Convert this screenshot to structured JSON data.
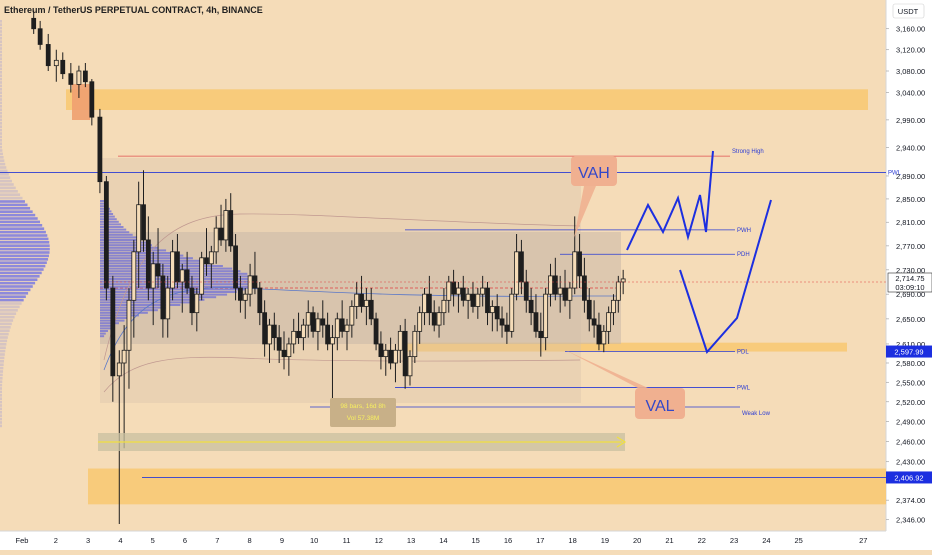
{
  "header": {
    "title": "Ethereum / TetherUS PERPETUAL CONTRACT, 4h, BINANCE",
    "currency": "USDT"
  },
  "colors": {
    "background": "#f5dcb8",
    "candle": "#1e1e1e",
    "zone": "#f8c870",
    "profile": "#6f6fd8",
    "level_line": "#2a3bd4",
    "drawing": "#1c2fe0",
    "callout": "#f0b090",
    "callout_text": "#3448c8"
  },
  "chart_data": {
    "type": "candlestick",
    "symbol": "Ethereum / TetherUS PERPETUAL CONTRACT",
    "timeframe": "4h",
    "exchange": "BINANCE",
    "y_scale": "log",
    "ylim": [
      2330,
      3200
    ],
    "y_ticks": [
      "3,160.00",
      "3,120.00",
      "3,080.00",
      "3,040.00",
      "2,990.00",
      "2,940.00",
      "2,890.00",
      "2,850.00",
      "2,810.00",
      "2,770.00",
      "2,730.00",
      "2,690.00",
      "2,650.00",
      "2,610.00",
      "2,580.00",
      "2,550.00",
      "2,520.00",
      "2,490.00",
      "2,460.00",
      "2,430.00",
      "2,374.00",
      "2,346.00"
    ],
    "x_ticks": [
      "Feb",
      "2",
      "3",
      "4",
      "5",
      "6",
      "7",
      "8",
      "9",
      "10",
      "11",
      "12",
      "13",
      "14",
      "15",
      "16",
      "17",
      "18",
      "19",
      "20",
      "21",
      "22",
      "23",
      "24",
      "25",
      "27"
    ],
    "current_price": {
      "label": "2,714.75",
      "countdown": "03:09:10",
      "value": 2714.75
    },
    "price_markers": [
      {
        "label": "2,597.99",
        "value": 2597.99
      },
      {
        "label": "2,406.92",
        "value": 2406.92
      }
    ],
    "levels": [
      {
        "name": "Strong High",
        "value": 2925
      },
      {
        "name": "PWL",
        "value": 2896
      },
      {
        "name": "PWH",
        "value": 2797
      },
      {
        "name": "PDH",
        "value": 2756
      },
      {
        "name": "PDL",
        "value": 2598
      },
      {
        "name": "PWL",
        "value": 2542
      },
      {
        "name": "Weak Low",
        "value": 2512
      }
    ],
    "level_ref": {
      "value": 2406.92
    },
    "zones": [
      {
        "low": 3008,
        "high": 3046
      },
      {
        "low": 2598,
        "high": 2612
      },
      {
        "low": 2368,
        "high": 2420
      }
    ],
    "annotations": {
      "vah": "VAH",
      "val": "VAL",
      "range_line1": "98 bars, 16d 8h",
      "range_line2": "Vol 57.38M"
    },
    "candles": [
      {
        "d": 0.3,
        "o": 3180,
        "h": 3195,
        "l": 3150,
        "c": 3160
      },
      {
        "d": 0.5,
        "o": 3160,
        "h": 3175,
        "l": 3120,
        "c": 3130
      },
      {
        "d": 0.75,
        "o": 3130,
        "h": 3150,
        "l": 3080,
        "c": 3090
      },
      {
        "d": 1.0,
        "o": 3090,
        "h": 3120,
        "l": 3060,
        "c": 3100
      },
      {
        "d": 1.2,
        "o": 3100,
        "h": 3115,
        "l": 3065,
        "c": 3075
      },
      {
        "d": 1.45,
        "o": 3075,
        "h": 3095,
        "l": 3040,
        "c": 3055
      },
      {
        "d": 1.7,
        "o": 3055,
        "h": 3090,
        "l": 3030,
        "c": 3080
      },
      {
        "d": 1.9,
        "o": 3080,
        "h": 3095,
        "l": 3050,
        "c": 3060
      },
      {
        "d": 2.1,
        "o": 3060,
        "h": 3065,
        "l": 2980,
        "c": 2995
      },
      {
        "d": 2.35,
        "o": 2995,
        "h": 3010,
        "l": 2860,
        "c": 2880
      },
      {
        "d": 2.55,
        "o": 2880,
        "h": 2890,
        "l": 2680,
        "c": 2700
      },
      {
        "d": 2.75,
        "o": 2700,
        "h": 2720,
        "l": 2520,
        "c": 2560
      },
      {
        "d": 2.95,
        "o": 2560,
        "h": 2600,
        "l": 2340,
        "c": 2580
      },
      {
        "d": 3.1,
        "o": 2580,
        "h": 2640,
        "l": 2450,
        "c": 2600
      },
      {
        "d": 3.25,
        "o": 2600,
        "h": 2700,
        "l": 2540,
        "c": 2680
      },
      {
        "d": 3.4,
        "o": 2680,
        "h": 2780,
        "l": 2620,
        "c": 2760
      },
      {
        "d": 3.55,
        "o": 2760,
        "h": 2880,
        "l": 2700,
        "c": 2840
      },
      {
        "d": 3.7,
        "o": 2840,
        "h": 2900,
        "l": 2760,
        "c": 2780
      },
      {
        "d": 3.85,
        "o": 2780,
        "h": 2820,
        "l": 2680,
        "c": 2700
      },
      {
        "d": 4.0,
        "o": 2700,
        "h": 2760,
        "l": 2640,
        "c": 2740
      },
      {
        "d": 4.15,
        "o": 2740,
        "h": 2800,
        "l": 2700,
        "c": 2720
      },
      {
        "d": 4.3,
        "o": 2720,
        "h": 2740,
        "l": 2620,
        "c": 2650
      },
      {
        "d": 4.45,
        "o": 2650,
        "h": 2720,
        "l": 2620,
        "c": 2700
      },
      {
        "d": 4.6,
        "o": 2700,
        "h": 2780,
        "l": 2680,
        "c": 2760
      },
      {
        "d": 4.75,
        "o": 2760,
        "h": 2790,
        "l": 2700,
        "c": 2710
      },
      {
        "d": 4.9,
        "o": 2710,
        "h": 2740,
        "l": 2660,
        "c": 2730
      },
      {
        "d": 5.05,
        "o": 2730,
        "h": 2760,
        "l": 2690,
        "c": 2700
      },
      {
        "d": 5.2,
        "o": 2700,
        "h": 2720,
        "l": 2640,
        "c": 2660
      },
      {
        "d": 5.35,
        "o": 2660,
        "h": 2700,
        "l": 2630,
        "c": 2690
      },
      {
        "d": 5.5,
        "o": 2690,
        "h": 2760,
        "l": 2680,
        "c": 2750
      },
      {
        "d": 5.65,
        "o": 2750,
        "h": 2800,
        "l": 2720,
        "c": 2740
      },
      {
        "d": 5.8,
        "o": 2740,
        "h": 2770,
        "l": 2700,
        "c": 2760
      },
      {
        "d": 5.95,
        "o": 2760,
        "h": 2820,
        "l": 2740,
        "c": 2800
      },
      {
        "d": 6.1,
        "o": 2800,
        "h": 2840,
        "l": 2770,
        "c": 2780
      },
      {
        "d": 6.25,
        "o": 2780,
        "h": 2850,
        "l": 2760,
        "c": 2830
      },
      {
        "d": 6.4,
        "o": 2830,
        "h": 2860,
        "l": 2760,
        "c": 2770
      },
      {
        "d": 6.55,
        "o": 2770,
        "h": 2790,
        "l": 2680,
        "c": 2700
      },
      {
        "d": 6.7,
        "o": 2700,
        "h": 2720,
        "l": 2660,
        "c": 2680
      },
      {
        "d": 6.85,
        "o": 2680,
        "h": 2700,
        "l": 2650,
        "c": 2690
      },
      {
        "d": 7.0,
        "o": 2690,
        "h": 2740,
        "l": 2670,
        "c": 2720
      },
      {
        "d": 7.15,
        "o": 2720,
        "h": 2760,
        "l": 2690,
        "c": 2700
      },
      {
        "d": 7.3,
        "o": 2700,
        "h": 2710,
        "l": 2640,
        "c": 2660
      },
      {
        "d": 7.45,
        "o": 2660,
        "h": 2680,
        "l": 2590,
        "c": 2610
      },
      {
        "d": 7.6,
        "o": 2610,
        "h": 2650,
        "l": 2580,
        "c": 2640
      },
      {
        "d": 7.75,
        "o": 2640,
        "h": 2660,
        "l": 2600,
        "c": 2620
      },
      {
        "d": 7.9,
        "o": 2620,
        "h": 2640,
        "l": 2580,
        "c": 2600
      },
      {
        "d": 8.05,
        "o": 2600,
        "h": 2630,
        "l": 2570,
        "c": 2590
      },
      {
        "d": 8.2,
        "o": 2590,
        "h": 2620,
        "l": 2560,
        "c": 2610
      },
      {
        "d": 8.35,
        "o": 2610,
        "h": 2650,
        "l": 2595,
        "c": 2630
      },
      {
        "d": 8.5,
        "o": 2630,
        "h": 2660,
        "l": 2610,
        "c": 2620
      },
      {
        "d": 8.65,
        "o": 2620,
        "h": 2650,
        "l": 2600,
        "c": 2640
      },
      {
        "d": 8.8,
        "o": 2640,
        "h": 2680,
        "l": 2620,
        "c": 2660
      },
      {
        "d": 8.95,
        "o": 2660,
        "h": 2670,
        "l": 2620,
        "c": 2630
      },
      {
        "d": 9.1,
        "o": 2630,
        "h": 2660,
        "l": 2600,
        "c": 2650
      },
      {
        "d": 9.25,
        "o": 2650,
        "h": 2680,
        "l": 2620,
        "c": 2640
      },
      {
        "d": 9.4,
        "o": 2640,
        "h": 2660,
        "l": 2600,
        "c": 2610
      },
      {
        "d": 9.55,
        "o": 2610,
        "h": 2640,
        "l": 2515,
        "c": 2620
      },
      {
        "d": 9.7,
        "o": 2620,
        "h": 2660,
        "l": 2600,
        "c": 2650
      },
      {
        "d": 9.85,
        "o": 2650,
        "h": 2680,
        "l": 2620,
        "c": 2630
      },
      {
        "d": 10.0,
        "o": 2630,
        "h": 2650,
        "l": 2600,
        "c": 2640
      },
      {
        "d": 10.15,
        "o": 2640,
        "h": 2680,
        "l": 2620,
        "c": 2670
      },
      {
        "d": 10.3,
        "o": 2670,
        "h": 2710,
        "l": 2650,
        "c": 2690
      },
      {
        "d": 10.45,
        "o": 2690,
        "h": 2720,
        "l": 2660,
        "c": 2670
      },
      {
        "d": 10.6,
        "o": 2670,
        "h": 2700,
        "l": 2640,
        "c": 2680
      },
      {
        "d": 10.75,
        "o": 2680,
        "h": 2700,
        "l": 2640,
        "c": 2650
      },
      {
        "d": 10.9,
        "o": 2650,
        "h": 2660,
        "l": 2600,
        "c": 2610
      },
      {
        "d": 11.05,
        "o": 2610,
        "h": 2630,
        "l": 2570,
        "c": 2590
      },
      {
        "d": 11.2,
        "o": 2590,
        "h": 2610,
        "l": 2560,
        "c": 2600
      },
      {
        "d": 11.35,
        "o": 2600,
        "h": 2620,
        "l": 2570,
        "c": 2580
      },
      {
        "d": 11.5,
        "o": 2580,
        "h": 2610,
        "l": 2550,
        "c": 2600
      },
      {
        "d": 11.65,
        "o": 2600,
        "h": 2640,
        "l": 2580,
        "c": 2630
      },
      {
        "d": 11.8,
        "o": 2630,
        "h": 2650,
        "l": 2540,
        "c": 2560
      },
      {
        "d": 11.95,
        "o": 2560,
        "h": 2600,
        "l": 2545,
        "c": 2590
      },
      {
        "d": 12.1,
        "o": 2590,
        "h": 2640,
        "l": 2580,
        "c": 2630
      },
      {
        "d": 12.25,
        "o": 2630,
        "h": 2670,
        "l": 2610,
        "c": 2660
      },
      {
        "d": 12.4,
        "o": 2660,
        "h": 2700,
        "l": 2640,
        "c": 2690
      },
      {
        "d": 12.55,
        "o": 2690,
        "h": 2720,
        "l": 2640,
        "c": 2660
      },
      {
        "d": 12.7,
        "o": 2660,
        "h": 2680,
        "l": 2630,
        "c": 2640
      },
      {
        "d": 12.85,
        "o": 2640,
        "h": 2670,
        "l": 2620,
        "c": 2660
      },
      {
        "d": 13.0,
        "o": 2660,
        "h": 2700,
        "l": 2640,
        "c": 2680
      },
      {
        "d": 13.15,
        "o": 2680,
        "h": 2720,
        "l": 2660,
        "c": 2710
      },
      {
        "d": 13.3,
        "o": 2710,
        "h": 2730,
        "l": 2670,
        "c": 2690
      },
      {
        "d": 13.45,
        "o": 2690,
        "h": 2710,
        "l": 2660,
        "c": 2700
      },
      {
        "d": 13.6,
        "o": 2700,
        "h": 2720,
        "l": 2670,
        "c": 2680
      },
      {
        "d": 13.75,
        "o": 2680,
        "h": 2700,
        "l": 2650,
        "c": 2690
      },
      {
        "d": 13.9,
        "o": 2690,
        "h": 2710,
        "l": 2660,
        "c": 2670
      },
      {
        "d": 14.05,
        "o": 2670,
        "h": 2700,
        "l": 2650,
        "c": 2690
      },
      {
        "d": 14.2,
        "o": 2690,
        "h": 2720,
        "l": 2670,
        "c": 2700
      },
      {
        "d": 14.35,
        "o": 2700,
        "h": 2710,
        "l": 2640,
        "c": 2660
      },
      {
        "d": 14.5,
        "o": 2660,
        "h": 2680,
        "l": 2630,
        "c": 2670
      },
      {
        "d": 14.65,
        "o": 2670,
        "h": 2690,
        "l": 2630,
        "c": 2650
      },
      {
        "d": 14.8,
        "o": 2650,
        "h": 2670,
        "l": 2620,
        "c": 2640
      },
      {
        "d": 14.95,
        "o": 2640,
        "h": 2660,
        "l": 2610,
        "c": 2630
      },
      {
        "d": 15.1,
        "o": 2630,
        "h": 2700,
        "l": 2620,
        "c": 2690
      },
      {
        "d": 15.25,
        "o": 2690,
        "h": 2790,
        "l": 2680,
        "c": 2760
      },
      {
        "d": 15.4,
        "o": 2760,
        "h": 2780,
        "l": 2690,
        "c": 2710
      },
      {
        "d": 15.55,
        "o": 2710,
        "h": 2730,
        "l": 2660,
        "c": 2680
      },
      {
        "d": 15.7,
        "o": 2680,
        "h": 2700,
        "l": 2640,
        "c": 2660
      },
      {
        "d": 15.85,
        "o": 2660,
        "h": 2690,
        "l": 2620,
        "c": 2630
      },
      {
        "d": 16.0,
        "o": 2630,
        "h": 2660,
        "l": 2590,
        "c": 2620
      },
      {
        "d": 16.15,
        "o": 2620,
        "h": 2700,
        "l": 2600,
        "c": 2690
      },
      {
        "d": 16.3,
        "o": 2690,
        "h": 2740,
        "l": 2670,
        "c": 2720
      },
      {
        "d": 16.45,
        "o": 2720,
        "h": 2750,
        "l": 2680,
        "c": 2690
      },
      {
        "d": 16.6,
        "o": 2690,
        "h": 2720,
        "l": 2660,
        "c": 2700
      },
      {
        "d": 16.75,
        "o": 2700,
        "h": 2730,
        "l": 2670,
        "c": 2680
      },
      {
        "d": 16.9,
        "o": 2680,
        "h": 2710,
        "l": 2650,
        "c": 2700
      },
      {
        "d": 17.05,
        "o": 2700,
        "h": 2820,
        "l": 2690,
        "c": 2760
      },
      {
        "d": 17.2,
        "o": 2760,
        "h": 2790,
        "l": 2700,
        "c": 2720
      },
      {
        "d": 17.35,
        "o": 2720,
        "h": 2750,
        "l": 2660,
        "c": 2680
      },
      {
        "d": 17.5,
        "o": 2680,
        "h": 2700,
        "l": 2630,
        "c": 2650
      },
      {
        "d": 17.65,
        "o": 2650,
        "h": 2680,
        "l": 2620,
        "c": 2640
      },
      {
        "d": 17.8,
        "o": 2640,
        "h": 2660,
        "l": 2600,
        "c": 2610
      },
      {
        "d": 17.95,
        "o": 2610,
        "h": 2640,
        "l": 2597,
        "c": 2630
      },
      {
        "d": 18.1,
        "o": 2630,
        "h": 2670,
        "l": 2610,
        "c": 2660
      },
      {
        "d": 18.25,
        "o": 2660,
        "h": 2690,
        "l": 2640,
        "c": 2680
      },
      {
        "d": 18.4,
        "o": 2680,
        "h": 2720,
        "l": 2660,
        "c": 2710
      },
      {
        "d": 18.55,
        "o": 2710,
        "h": 2730,
        "l": 2690,
        "c": 2715
      }
    ]
  }
}
